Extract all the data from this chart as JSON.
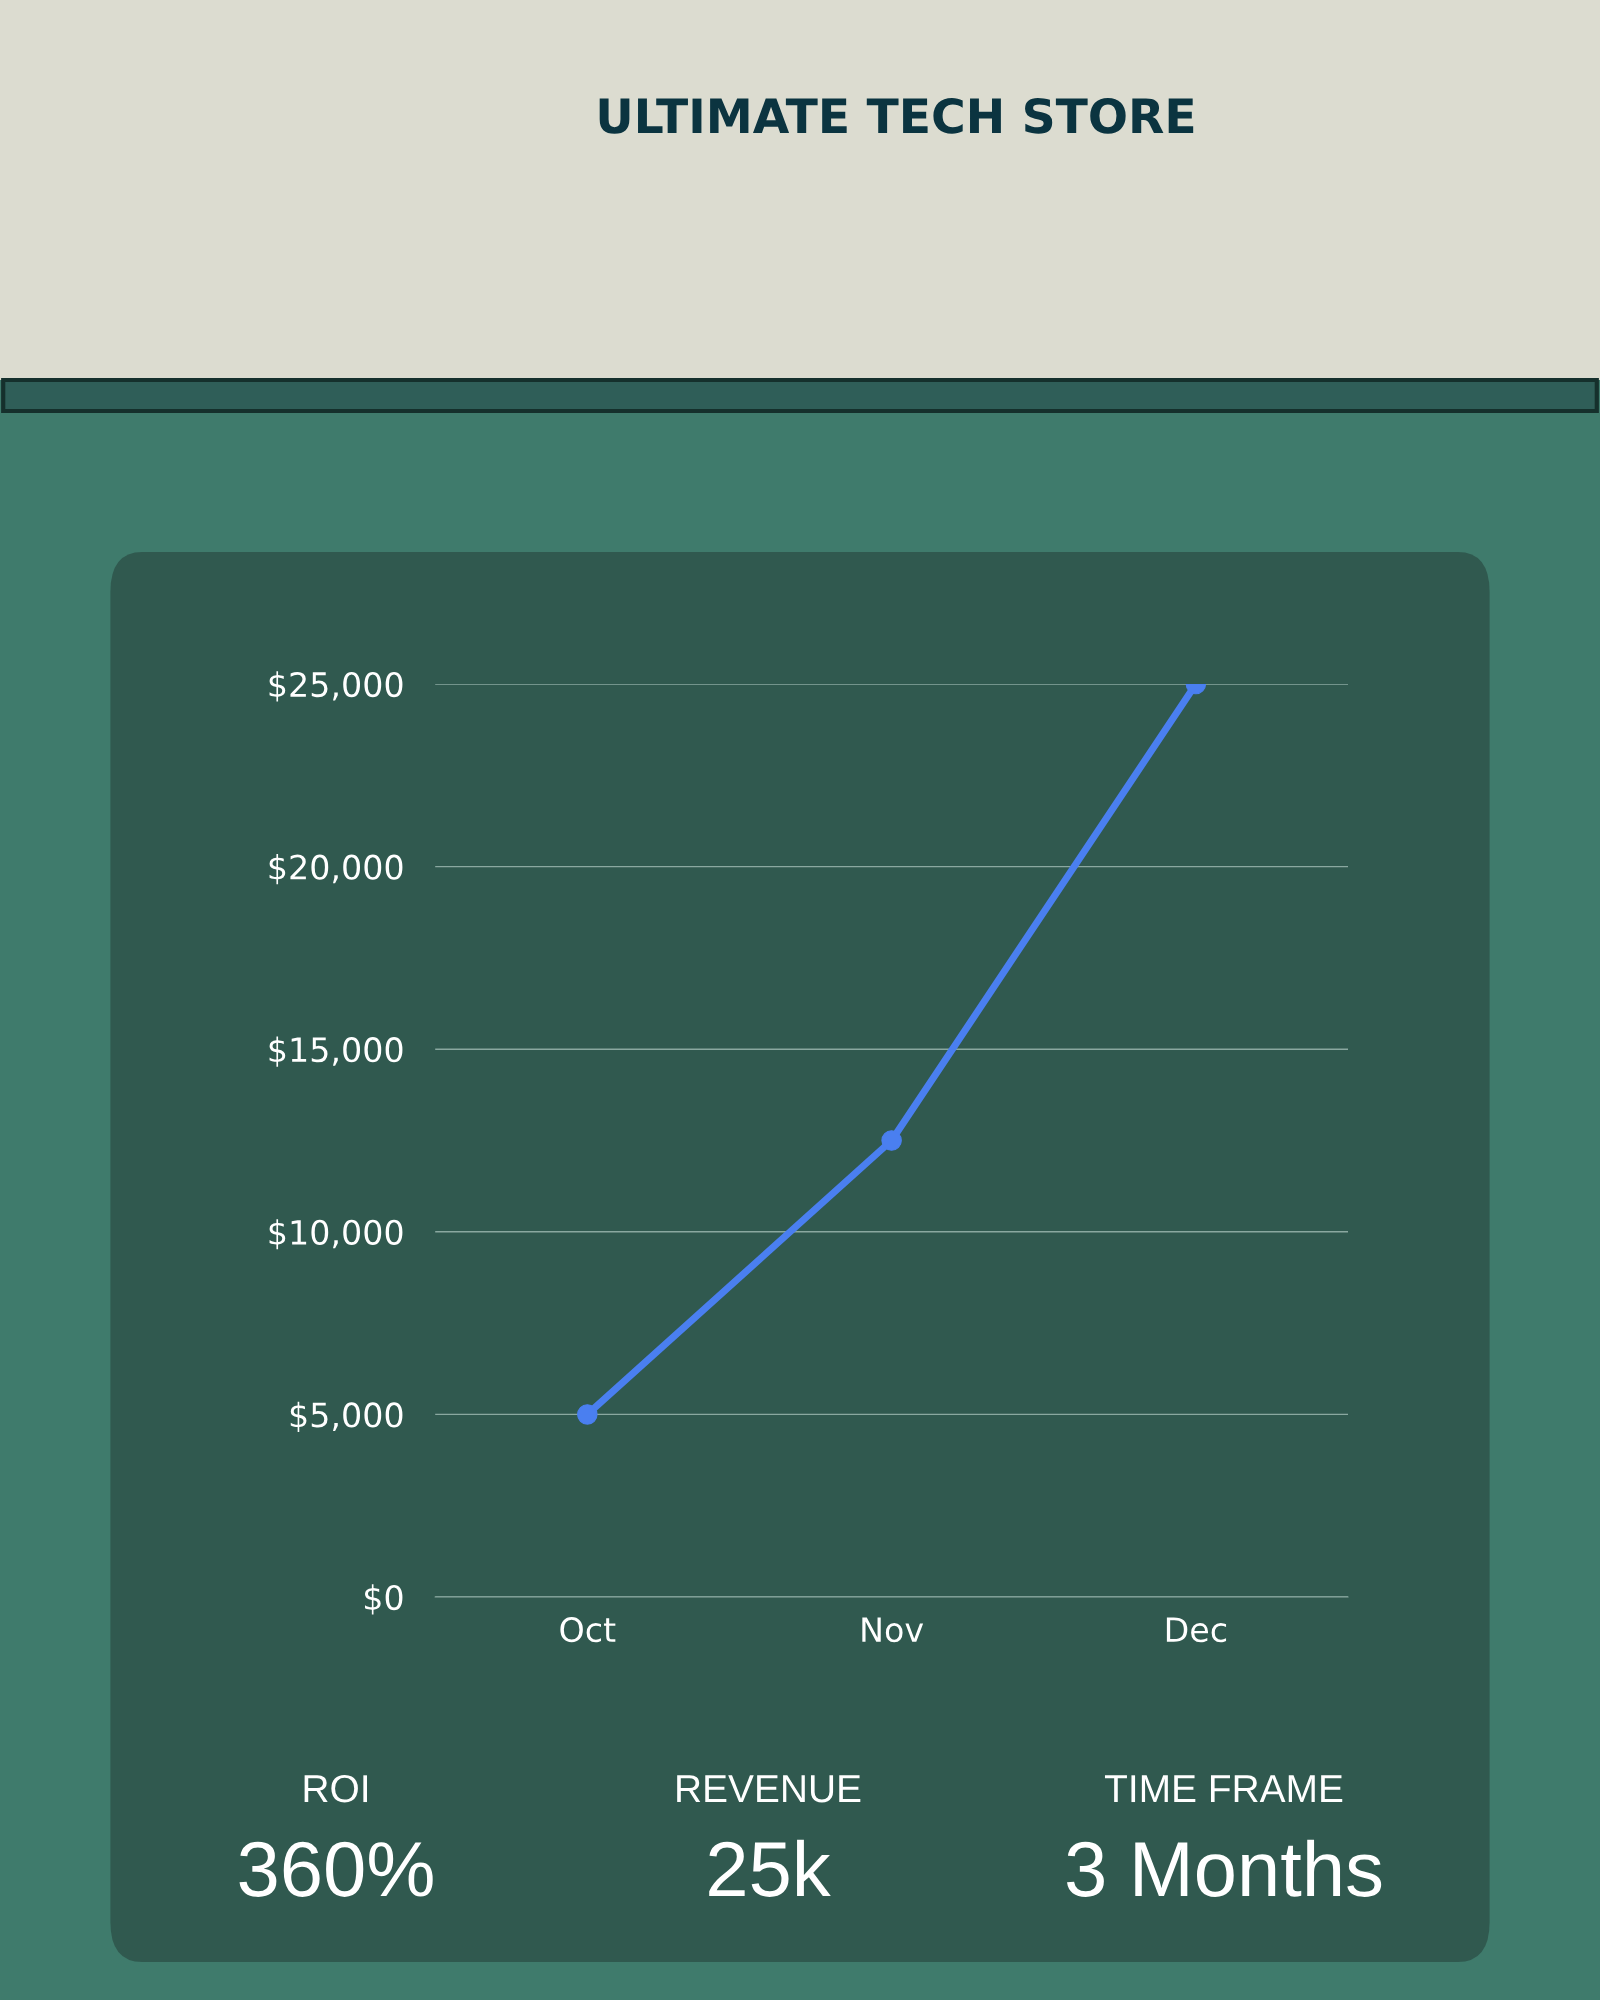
{
  "chart_data": {
    "type": "line",
    "title": "ULTIMATE TECH STORE",
    "categories": [
      "Oct",
      "Nov",
      "Dec"
    ],
    "series": [
      {
        "color": "#4a7ff0",
        "values": [
          5000,
          12500,
          25000
        ]
      }
    ],
    "ylim": [
      0,
      25000
    ],
    "yticks": [
      {
        "value": 0,
        "label": "$0"
      },
      {
        "value": 5000,
        "label": "$5,000"
      },
      {
        "value": 10000,
        "label": "$10,000"
      },
      {
        "value": 15000,
        "label": "$15,000"
      },
      {
        "value": 20000,
        "label": "$20,000"
      },
      {
        "value": 25000,
        "label": "$25,000"
      }
    ],
    "grid": "y",
    "marker": "circle",
    "line_style": "solid",
    "annotations": [
      "ROI",
      "360%",
      "REVENUE",
      "25k",
      "TIME FRAME",
      "3 Months"
    ]
  }
}
